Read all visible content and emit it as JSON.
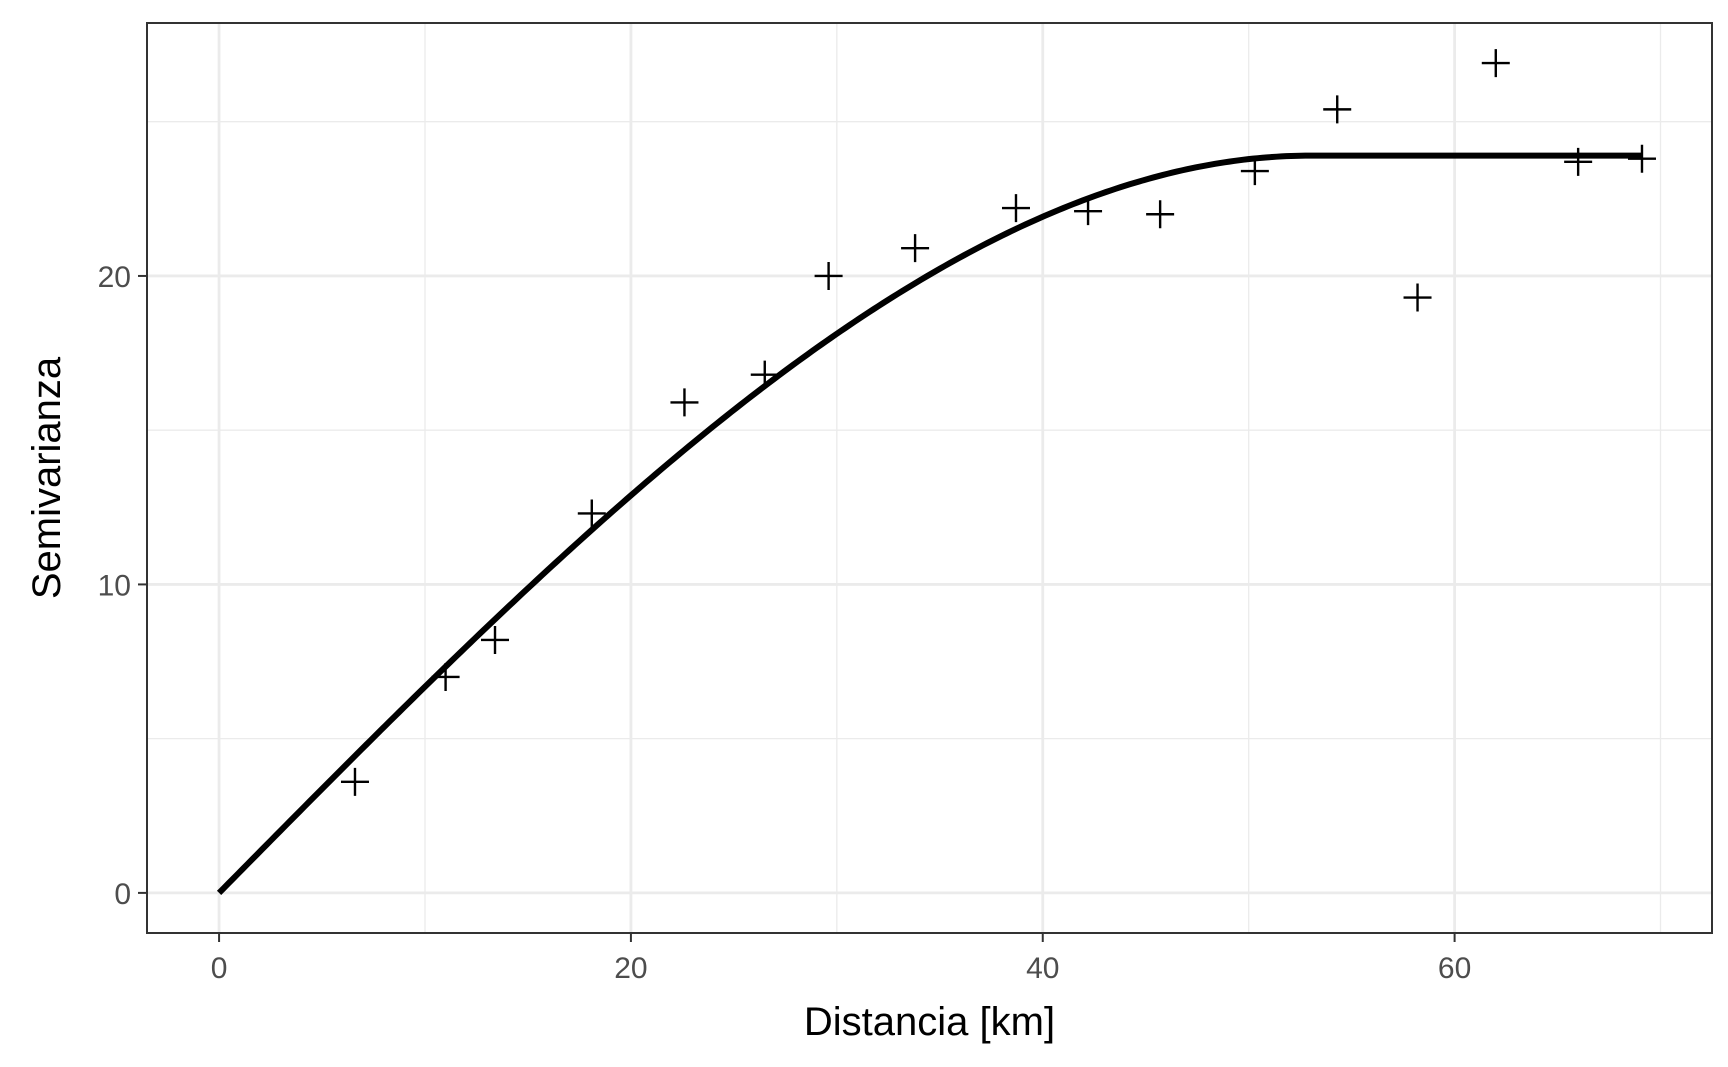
{
  "chart_data": {
    "type": "scatter",
    "title": "",
    "xlabel": "Distancia [km]",
    "ylabel": "Semivarianza",
    "xlim": [
      -3.5,
      72.5
    ],
    "ylim": [
      -1.3,
      28.2
    ],
    "x_ticks": [
      0,
      20,
      40,
      60
    ],
    "y_ticks": [
      0,
      10,
      20
    ],
    "x_tick_labels": [
      "0",
      "20",
      "40",
      "60"
    ],
    "y_tick_labels": [
      "0",
      "10",
      "20"
    ],
    "grid": true,
    "legend": "none",
    "points": {
      "marker": "plus",
      "x": [
        6.6,
        11.0,
        13.4,
        18.1,
        22.6,
        26.5,
        29.6,
        33.8,
        38.7,
        42.2,
        45.7,
        50.3,
        54.3,
        58.2,
        62.0,
        66.0,
        69.1
      ],
      "y": [
        3.6,
        7.0,
        8.2,
        12.3,
        15.9,
        16.8,
        20.0,
        20.9,
        22.2,
        22.1,
        22.0,
        23.4,
        25.4,
        19.3,
        26.9,
        23.7,
        23.8
      ]
    },
    "fitted_model": {
      "type": "spherical",
      "nugget": 0,
      "sill": 23.9,
      "range": 53.0,
      "x_max": 69.1
    },
    "colors": {
      "background": "#ffffff",
      "grid": "#ebebeb",
      "panel_border": "#333333",
      "points": "#000000",
      "line": "#000000",
      "tick_text": "#4d4d4d"
    }
  }
}
